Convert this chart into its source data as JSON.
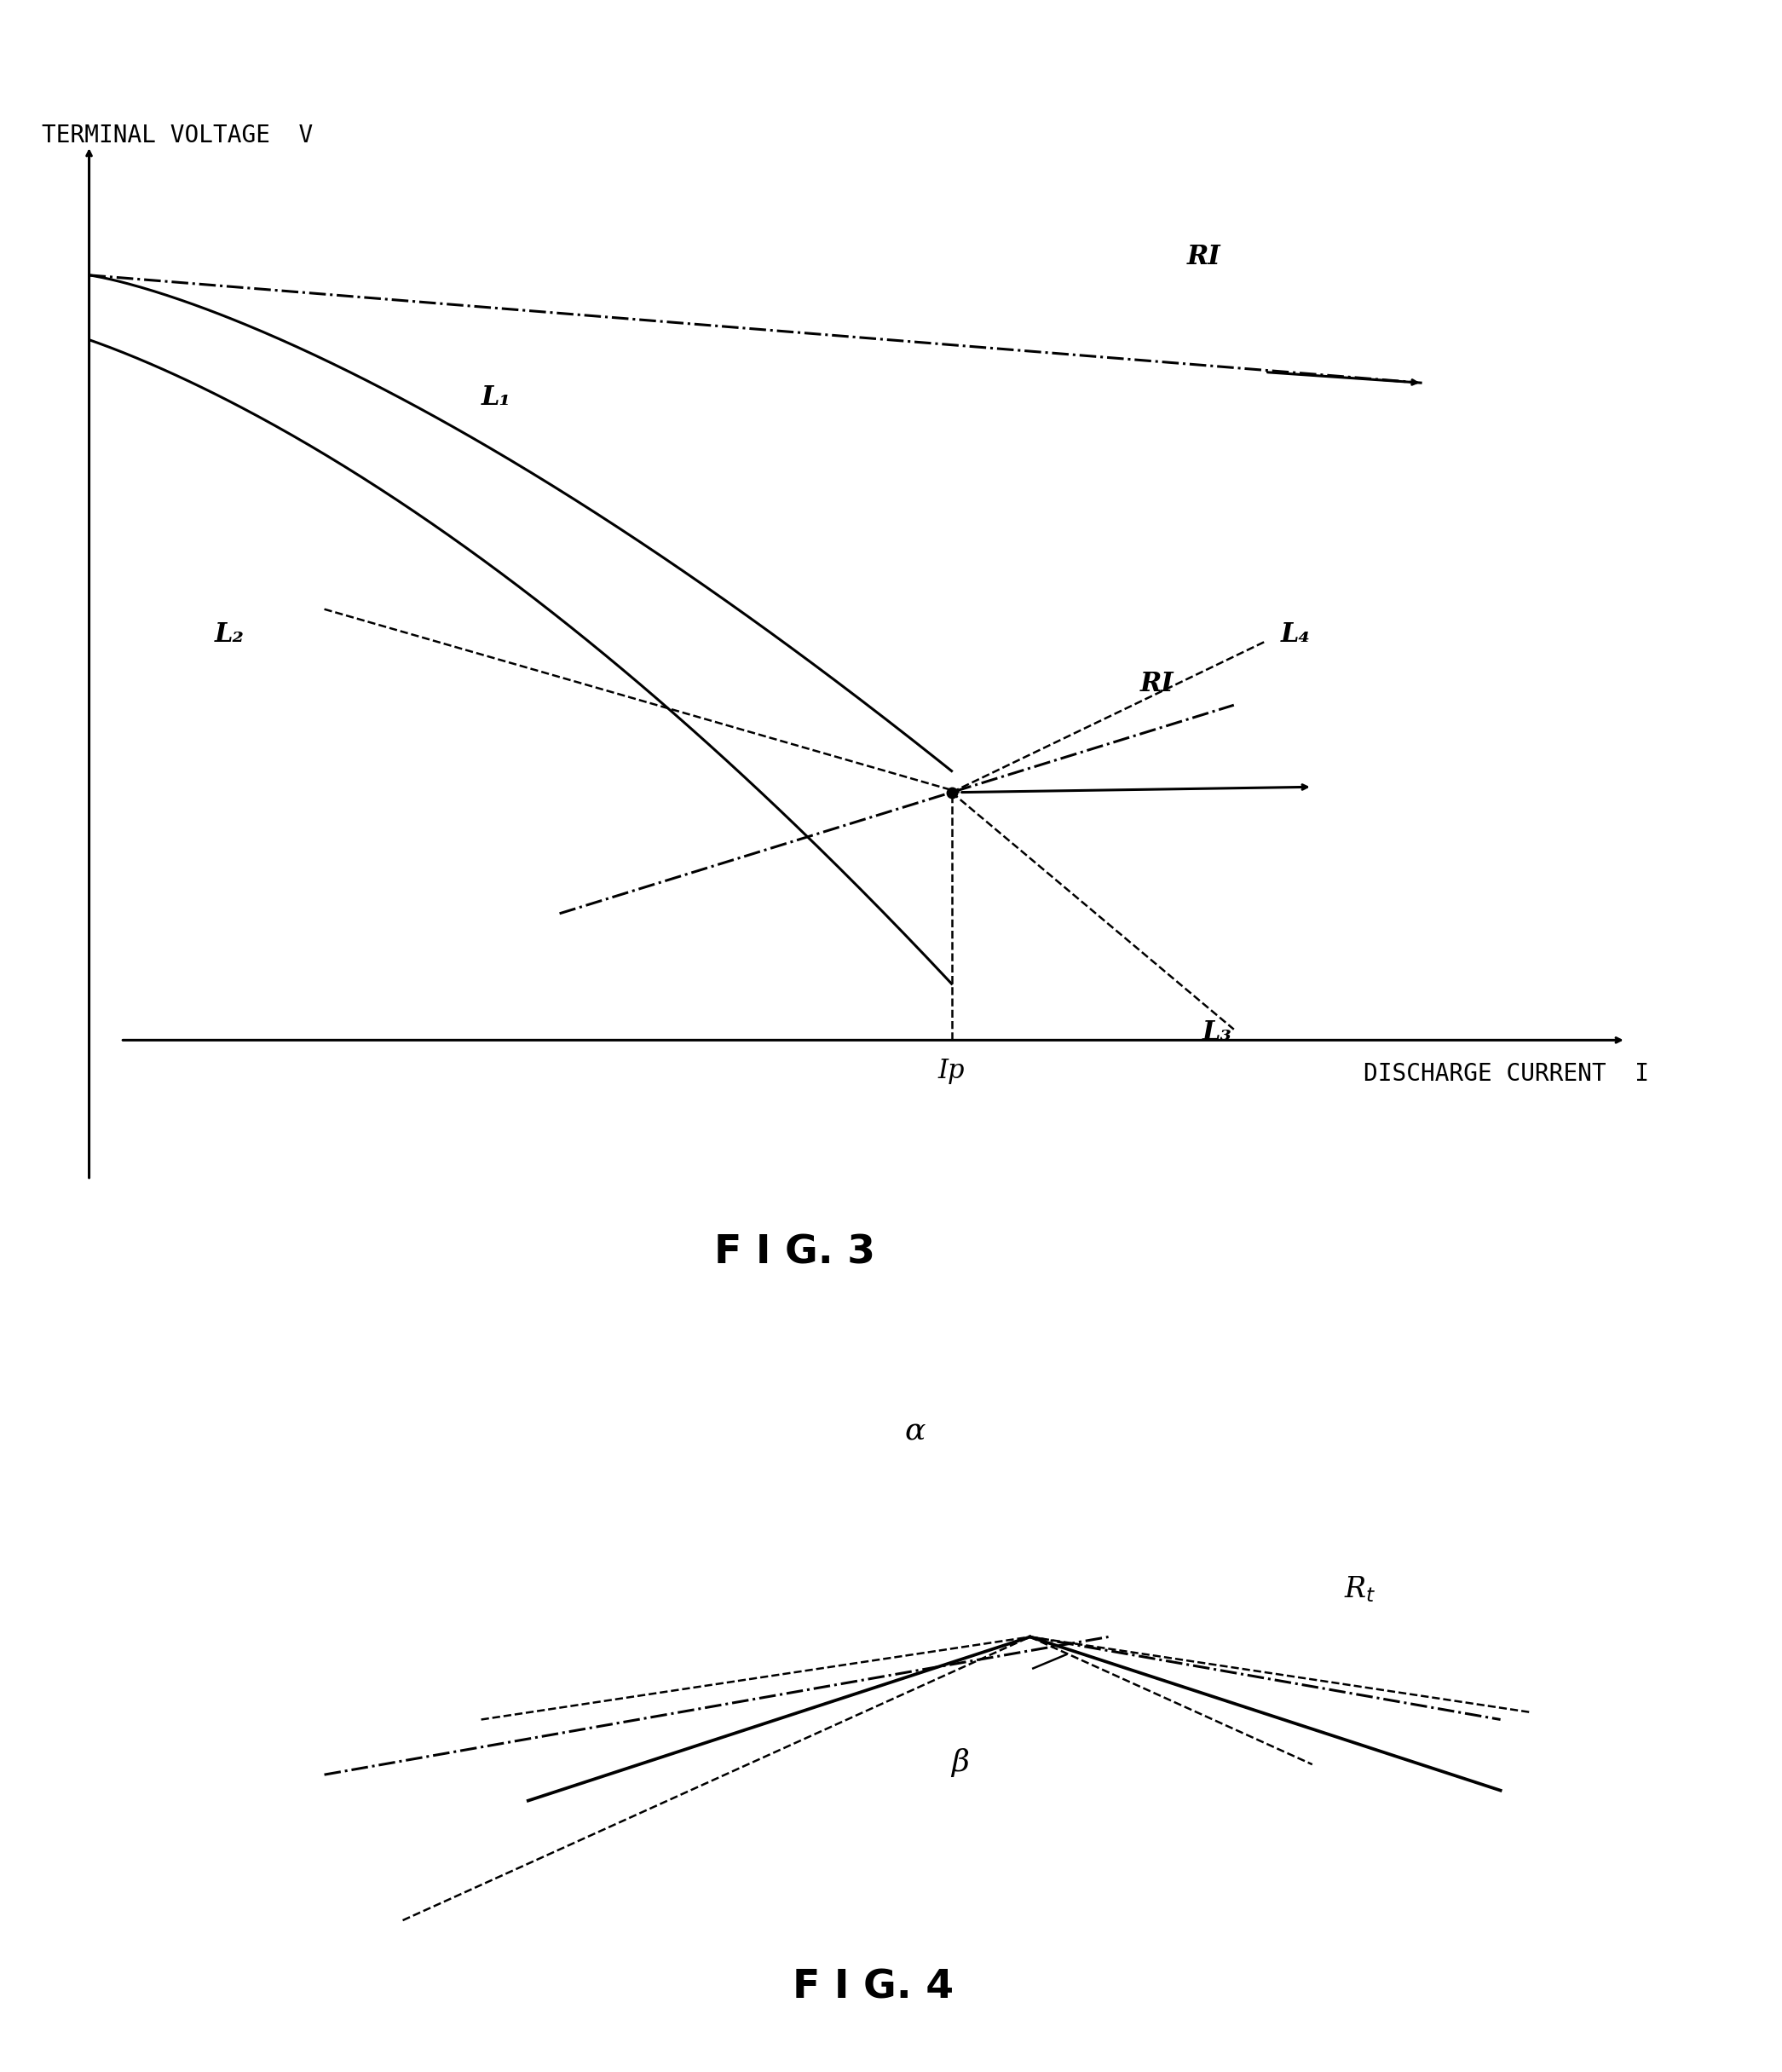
{
  "fig3_title": "F I G. 3",
  "fig4_title": "F I G. 4",
  "ylabel": "TERMINAL VOLTAGE  V",
  "xlabel": "DISCHARGE CURRENT  I",
  "ip_label": "Ip",
  "background_color": "#ffffff",
  "text_color": "#000000",
  "line_color": "#000000"
}
